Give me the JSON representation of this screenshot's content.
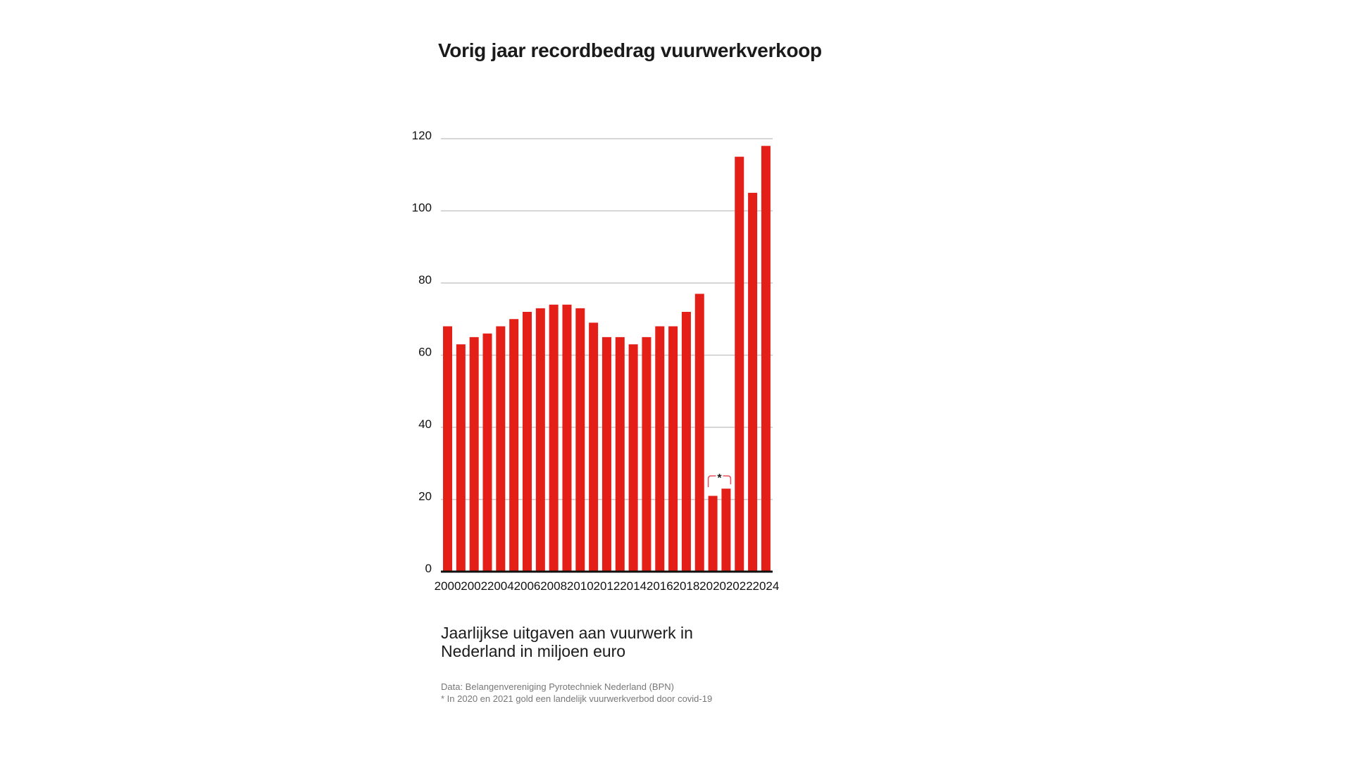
{
  "chart_data": {
    "type": "bar",
    "title": "Vorig jaar recordbedrag vuurwerkverkoop",
    "subtitle": "Jaarlijkse uitgaven aan vuurwerk in Nederland in miljoen euro",
    "xlabel": "",
    "ylabel": "",
    "ylim": [
      0,
      120
    ],
    "yticks": [
      0,
      20,
      40,
      60,
      80,
      100,
      120
    ],
    "grid": true,
    "categories": [
      "2000",
      "2001",
      "2002",
      "2003",
      "2004",
      "2005",
      "2006",
      "2007",
      "2008",
      "2009",
      "2010",
      "2011",
      "2012",
      "2013",
      "2014",
      "2015",
      "2016",
      "2017",
      "2018",
      "2019",
      "2020",
      "2021",
      "2022",
      "2023",
      "2024"
    ],
    "xtick_labels": [
      "2000",
      "2002",
      "2004",
      "2006",
      "2008",
      "2010",
      "2012",
      "2014",
      "2016",
      "2018",
      "2020",
      "2022",
      "2024"
    ],
    "values": [
      68,
      63,
      65,
      66,
      68,
      70,
      72,
      73,
      74,
      74,
      73,
      69,
      65,
      65,
      63,
      65,
      68,
      68,
      72,
      77,
      21,
      23,
      115,
      105,
      118
    ],
    "bar_color": "#e41f18",
    "annotation": {
      "label": "*",
      "years": [
        "2020",
        "2021"
      ],
      "color": "#e8505a"
    }
  },
  "caption": {
    "line1": "Jaarlijkse uitgaven aan vuurwerk in",
    "line2": "Nederland in miljoen euro"
  },
  "notes": {
    "source": "Data: Belangenvereniging Pyrotechniek Nederland (BPN)",
    "footnote": "* In 2020 en 2021 gold een landelijk vuurwerkverbod door covid-19"
  }
}
